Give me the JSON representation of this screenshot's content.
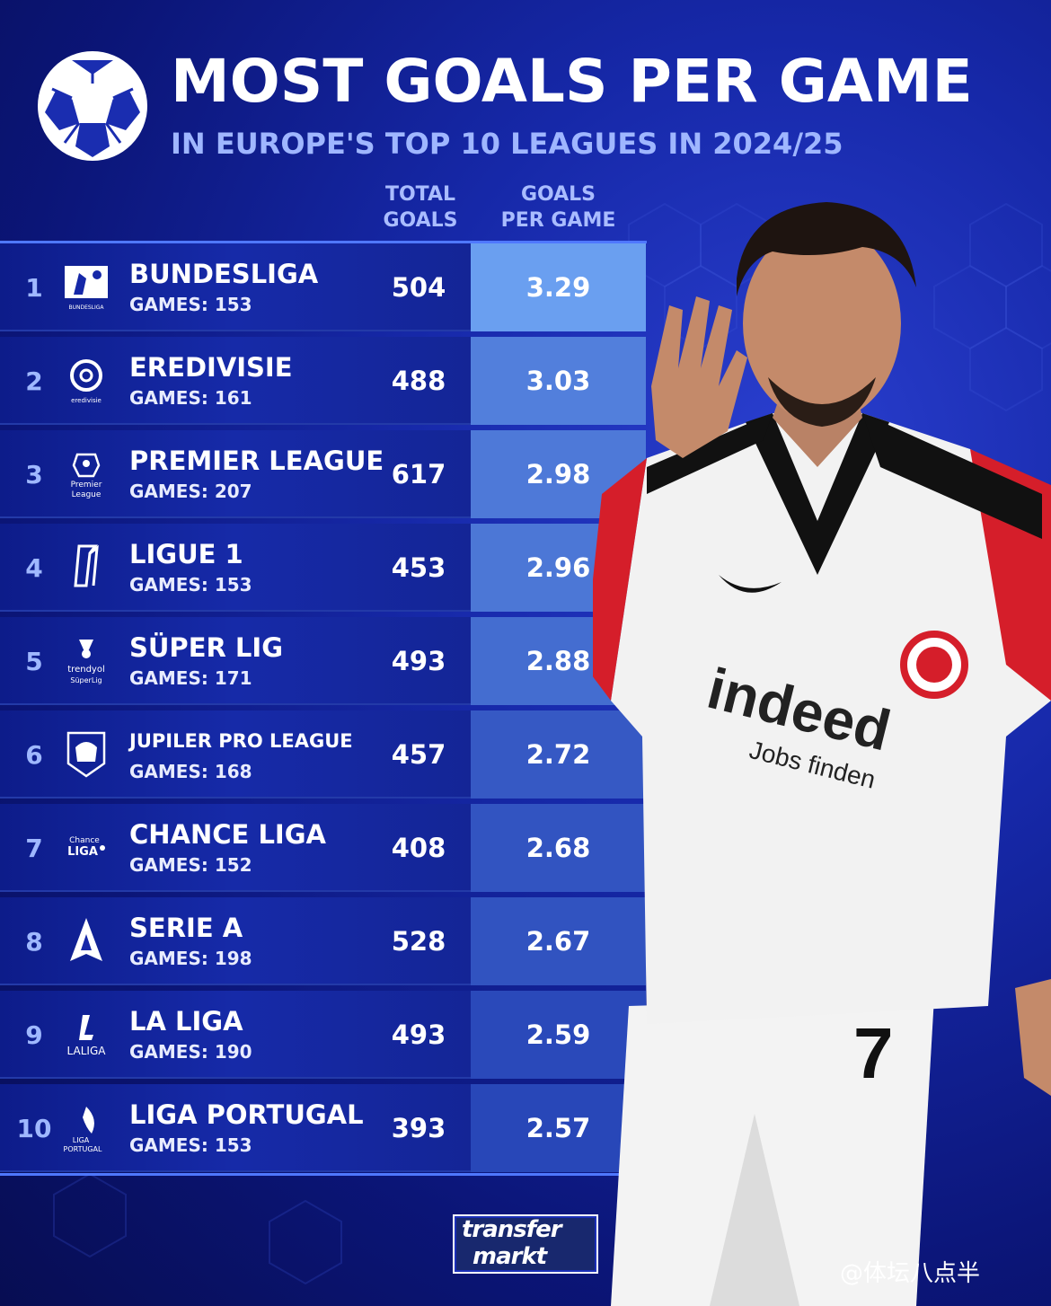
{
  "header": {
    "title": "MOST GOALS PER GAME",
    "subtitle": "IN EUROPE'S TOP 10 LEAGUES IN 2024/25"
  },
  "columns": {
    "total_line1": "TOTAL",
    "total_line2": "GOALS",
    "gpg_line1": "GOALS",
    "gpg_line2": "PER GAME"
  },
  "colors": {
    "background": "#1628a8",
    "row_background": "#162aa8",
    "accent": "#4f78ff",
    "gpg_high": "#6a9ff0",
    "gpg_low": "#2847b8"
  },
  "chart_data": {
    "type": "table",
    "title": "MOST GOALS PER GAME",
    "subtitle": "IN EUROPE'S TOP 10 LEAGUES IN 2024/25",
    "columns": [
      "TOTAL GOALS",
      "GOALS PER GAME"
    ],
    "rows": [
      {
        "rank": "1",
        "league": "BUNDESLIGA",
        "games": "GAMES: 153",
        "total_goals": 504,
        "goals_per_game": 3.29,
        "badge_text": "BUNDESLIGA"
      },
      {
        "rank": "2",
        "league": "EREDIVISIE",
        "games": "GAMES: 161",
        "total_goals": 488,
        "goals_per_game": 3.03,
        "badge_text": "eredivisie"
      },
      {
        "rank": "3",
        "league": "PREMIER LEAGUE",
        "games": "GAMES: 207",
        "total_goals": 617,
        "goals_per_game": 2.98,
        "badge_text": "Premier League"
      },
      {
        "rank": "4",
        "league": "LIGUE 1",
        "games": "GAMES: 153",
        "total_goals": 453,
        "goals_per_game": 2.96,
        "badge_text": "L1"
      },
      {
        "rank": "5",
        "league": "SÜPER LIG",
        "games": "GAMES: 171",
        "total_goals": 493,
        "goals_per_game": 2.88,
        "badge_text": "trendyol SüperLig"
      },
      {
        "rank": "6",
        "league": "JUPILER PRO LEAGUE",
        "games": "GAMES: 168",
        "total_goals": 457,
        "goals_per_game": 2.72,
        "badge_text": ""
      },
      {
        "rank": "7",
        "league": "CHANCE LIGA",
        "games": "GAMES: 152",
        "total_goals": 408,
        "goals_per_game": 2.68,
        "badge_text": "Chance LIGA"
      },
      {
        "rank": "8",
        "league": "SERIE A",
        "games": "GAMES: 198",
        "total_goals": 528,
        "goals_per_game": 2.67,
        "badge_text": "A"
      },
      {
        "rank": "9",
        "league": "LA LIGA",
        "games": "GAMES: 190",
        "total_goals": 493,
        "goals_per_game": 2.59,
        "badge_text": "LALIGA"
      },
      {
        "rank": "10",
        "league": "LIGA PORTUGAL",
        "games": "GAMES: 153",
        "total_goals": 393,
        "goals_per_game": 2.57,
        "badge_text": "LIGA PORTUGAL"
      }
    ]
  },
  "player": {
    "shirt_sponsor": "indeed",
    "shirt_sponsor_sub": "Jobs finden",
    "shirt_number": "7"
  },
  "footer": {
    "brand_line1": "transfer",
    "brand_line2": "markt",
    "watermark": "@体坛八点半"
  },
  "icons": {
    "header": "football-icon",
    "brand": "transfermarkt-logo"
  }
}
